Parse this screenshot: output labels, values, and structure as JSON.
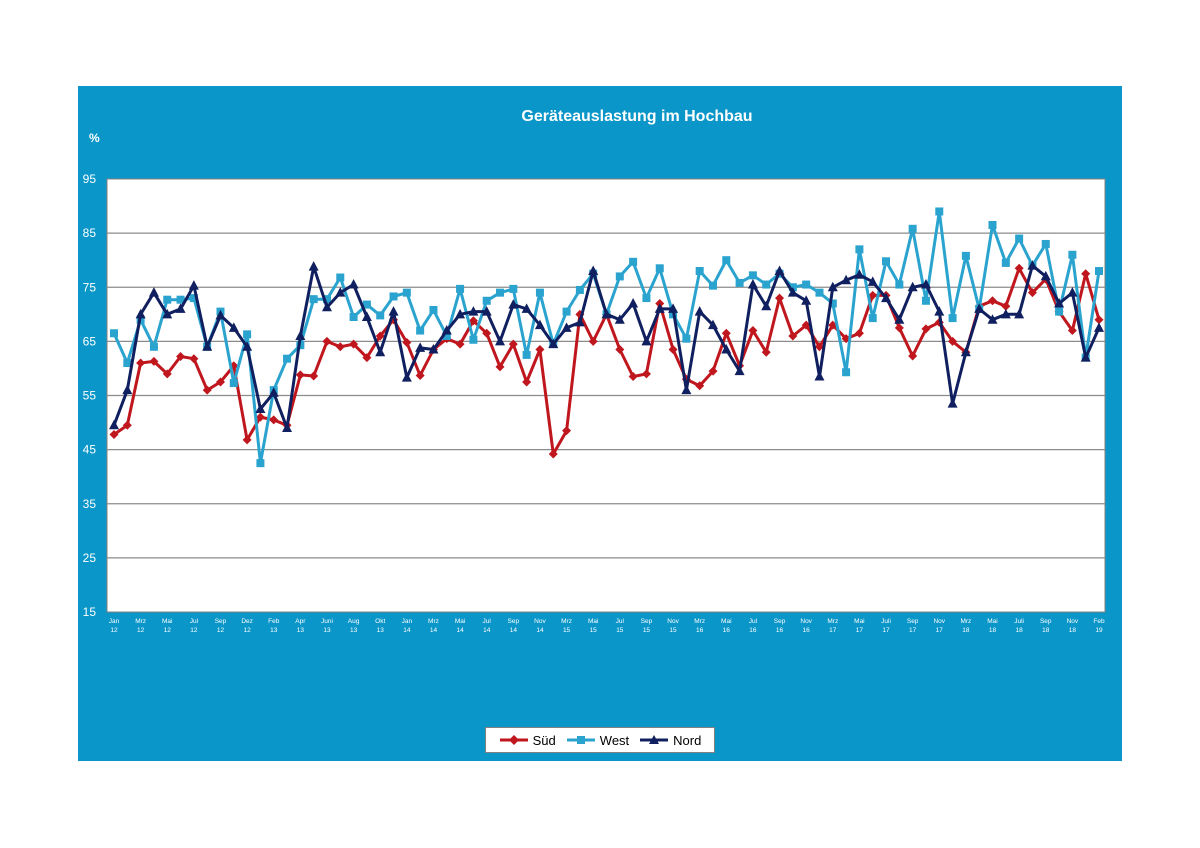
{
  "chart_data": {
    "type": "line",
    "title": "Geräteauslastung im Hochbau",
    "ylabel": "%",
    "ylim": [
      15,
      95
    ],
    "yticks": [
      95,
      85,
      75,
      65,
      55,
      45,
      35,
      25,
      15
    ],
    "xticks": [
      [
        "Jan",
        "12"
      ],
      [
        "Mrz",
        "12"
      ],
      [
        "Mai",
        "12"
      ],
      [
        "Jul",
        "12"
      ],
      [
        "Sep",
        "12"
      ],
      [
        "Dez",
        "12"
      ],
      [
        "Feb",
        "13"
      ],
      [
        "Apr",
        "13"
      ],
      [
        "Juni",
        "13"
      ],
      [
        "Aug",
        "13"
      ],
      [
        "Okt",
        "13"
      ],
      [
        "Jan",
        "14"
      ],
      [
        "Mrz",
        "14"
      ],
      [
        "Mai",
        "14"
      ],
      [
        "Jul",
        "14"
      ],
      [
        "Sep",
        "14"
      ],
      [
        "Nov",
        "14"
      ],
      [
        "Mrz",
        "15"
      ],
      [
        "Mai",
        "15"
      ],
      [
        "Jul",
        "15"
      ],
      [
        "Sep",
        "15"
      ],
      [
        "Nov",
        "15"
      ],
      [
        "Mrz",
        "16"
      ],
      [
        "Mai",
        "16"
      ],
      [
        "Jul",
        "16"
      ],
      [
        "Sep",
        "16"
      ],
      [
        "Nov",
        "16"
      ],
      [
        "Mrz",
        "17"
      ],
      [
        "Mai",
        "17"
      ],
      [
        "Juli",
        "17"
      ],
      [
        "Sep",
        "17"
      ],
      [
        "Nov",
        "17"
      ],
      [
        "Mrz",
        "18"
      ],
      [
        "Mai",
        "18"
      ],
      [
        "Juli",
        "18"
      ],
      [
        "Sep",
        "18"
      ],
      [
        "Nov",
        "18"
      ],
      [
        "Feb",
        "19"
      ]
    ],
    "series": [
      {
        "name": "Süd",
        "color": "#c0161d",
        "marker": "diamond",
        "values": [
          47.8,
          49.5,
          61,
          61.3,
          59,
          62.2,
          61.8,
          56,
          57.5,
          60.5,
          46.8,
          51,
          50.5,
          49.5,
          58.8,
          58.6,
          65,
          64,
          64.5,
          62,
          66,
          69,
          64.8,
          58.7,
          63.5,
          65.5,
          64.5,
          68.8,
          66.5,
          60.3,
          64.5,
          57.5,
          63.5,
          44.2,
          48.5,
          70,
          65,
          70,
          63.5,
          58.5,
          59,
          72,
          63.5,
          58,
          56.8,
          59.5,
          66.5,
          60.5,
          67,
          63,
          73,
          66,
          68,
          64,
          68,
          65.5,
          66.5,
          73.5,
          73.5,
          67.5,
          62.3,
          67.3,
          68.5,
          65,
          63,
          71.5,
          72.5,
          71.5,
          78.5,
          74,
          76.5,
          70.5,
          67,
          77.5,
          69
        ]
      },
      {
        "name": "West",
        "color": "#2aa3cf",
        "marker": "square",
        "values": [
          66.5,
          61,
          69,
          64,
          72.7,
          72.7,
          73,
          64,
          70.5,
          57.3,
          66.3,
          42.5,
          56,
          61.8,
          64.3,
          72.8,
          72.8,
          76.8,
          69.5,
          71.8,
          69.8,
          73.3,
          74,
          67,
          70.8,
          66,
          74.7,
          65.3,
          72.5,
          74,
          74.7,
          62.5,
          74,
          64.5,
          70.5,
          74.5,
          77.5,
          70,
          77,
          79.7,
          73,
          78.5,
          70,
          65.5,
          78,
          75.3,
          80,
          75.8,
          77.2,
          75.5,
          77.5,
          75,
          75.5,
          74,
          72,
          59.3,
          82,
          69.3,
          79.8,
          75.5,
          85.8,
          72.5,
          89,
          69.3,
          80.8,
          71,
          86.5,
          79.5,
          84,
          79,
          83,
          70.5,
          81,
          62,
          78
        ]
      },
      {
        "name": "Nord",
        "color": "#101f5f",
        "marker": "triangle",
        "values": [
          49.5,
          56,
          70,
          74,
          70,
          71,
          75.3,
          64,
          69.8,
          67.5,
          64,
          52.5,
          55.5,
          49,
          66,
          78.8,
          71.3,
          74,
          75.5,
          69.5,
          63,
          70.5,
          58.3,
          63.8,
          63.5,
          67,
          70,
          70.5,
          70.5,
          65,
          71.8,
          71,
          68,
          64.5,
          67.5,
          68.5,
          78,
          70,
          69,
          72,
          65,
          71,
          71,
          56,
          70.5,
          68,
          63.5,
          59.5,
          75.5,
          71.5,
          78,
          74,
          72.5,
          58.5,
          75,
          76.3,
          77.3,
          76,
          73,
          69,
          75,
          75.5,
          70.5,
          53.5,
          63,
          71,
          69,
          70,
          70,
          79,
          77,
          72,
          74,
          62,
          67.5
        ]
      }
    ]
  }
}
